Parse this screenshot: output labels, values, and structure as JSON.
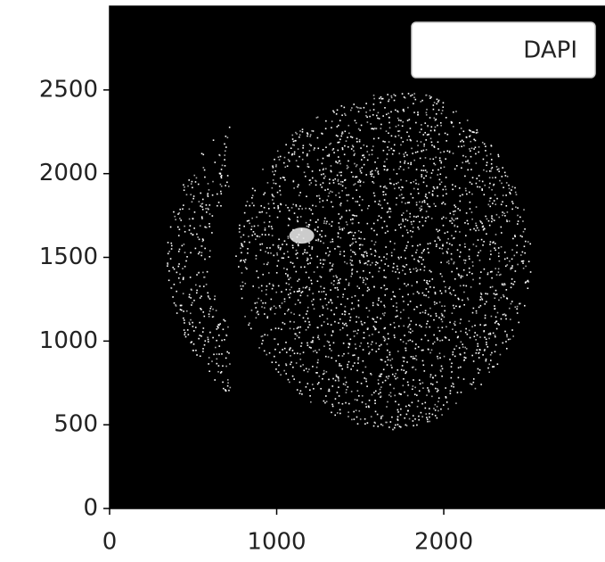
{
  "chart_data": {
    "type": "image",
    "series": [
      {
        "name": "DAPI",
        "color": "#ffffff"
      }
    ],
    "legend": "upper right",
    "xlim": [
      0,
      2965
    ],
    "ylim": [
      0,
      3000
    ],
    "xticks": [
      0,
      1000,
      2000
    ],
    "yticks": [
      0,
      500,
      1000,
      1500,
      2000,
      2500
    ]
  }
}
